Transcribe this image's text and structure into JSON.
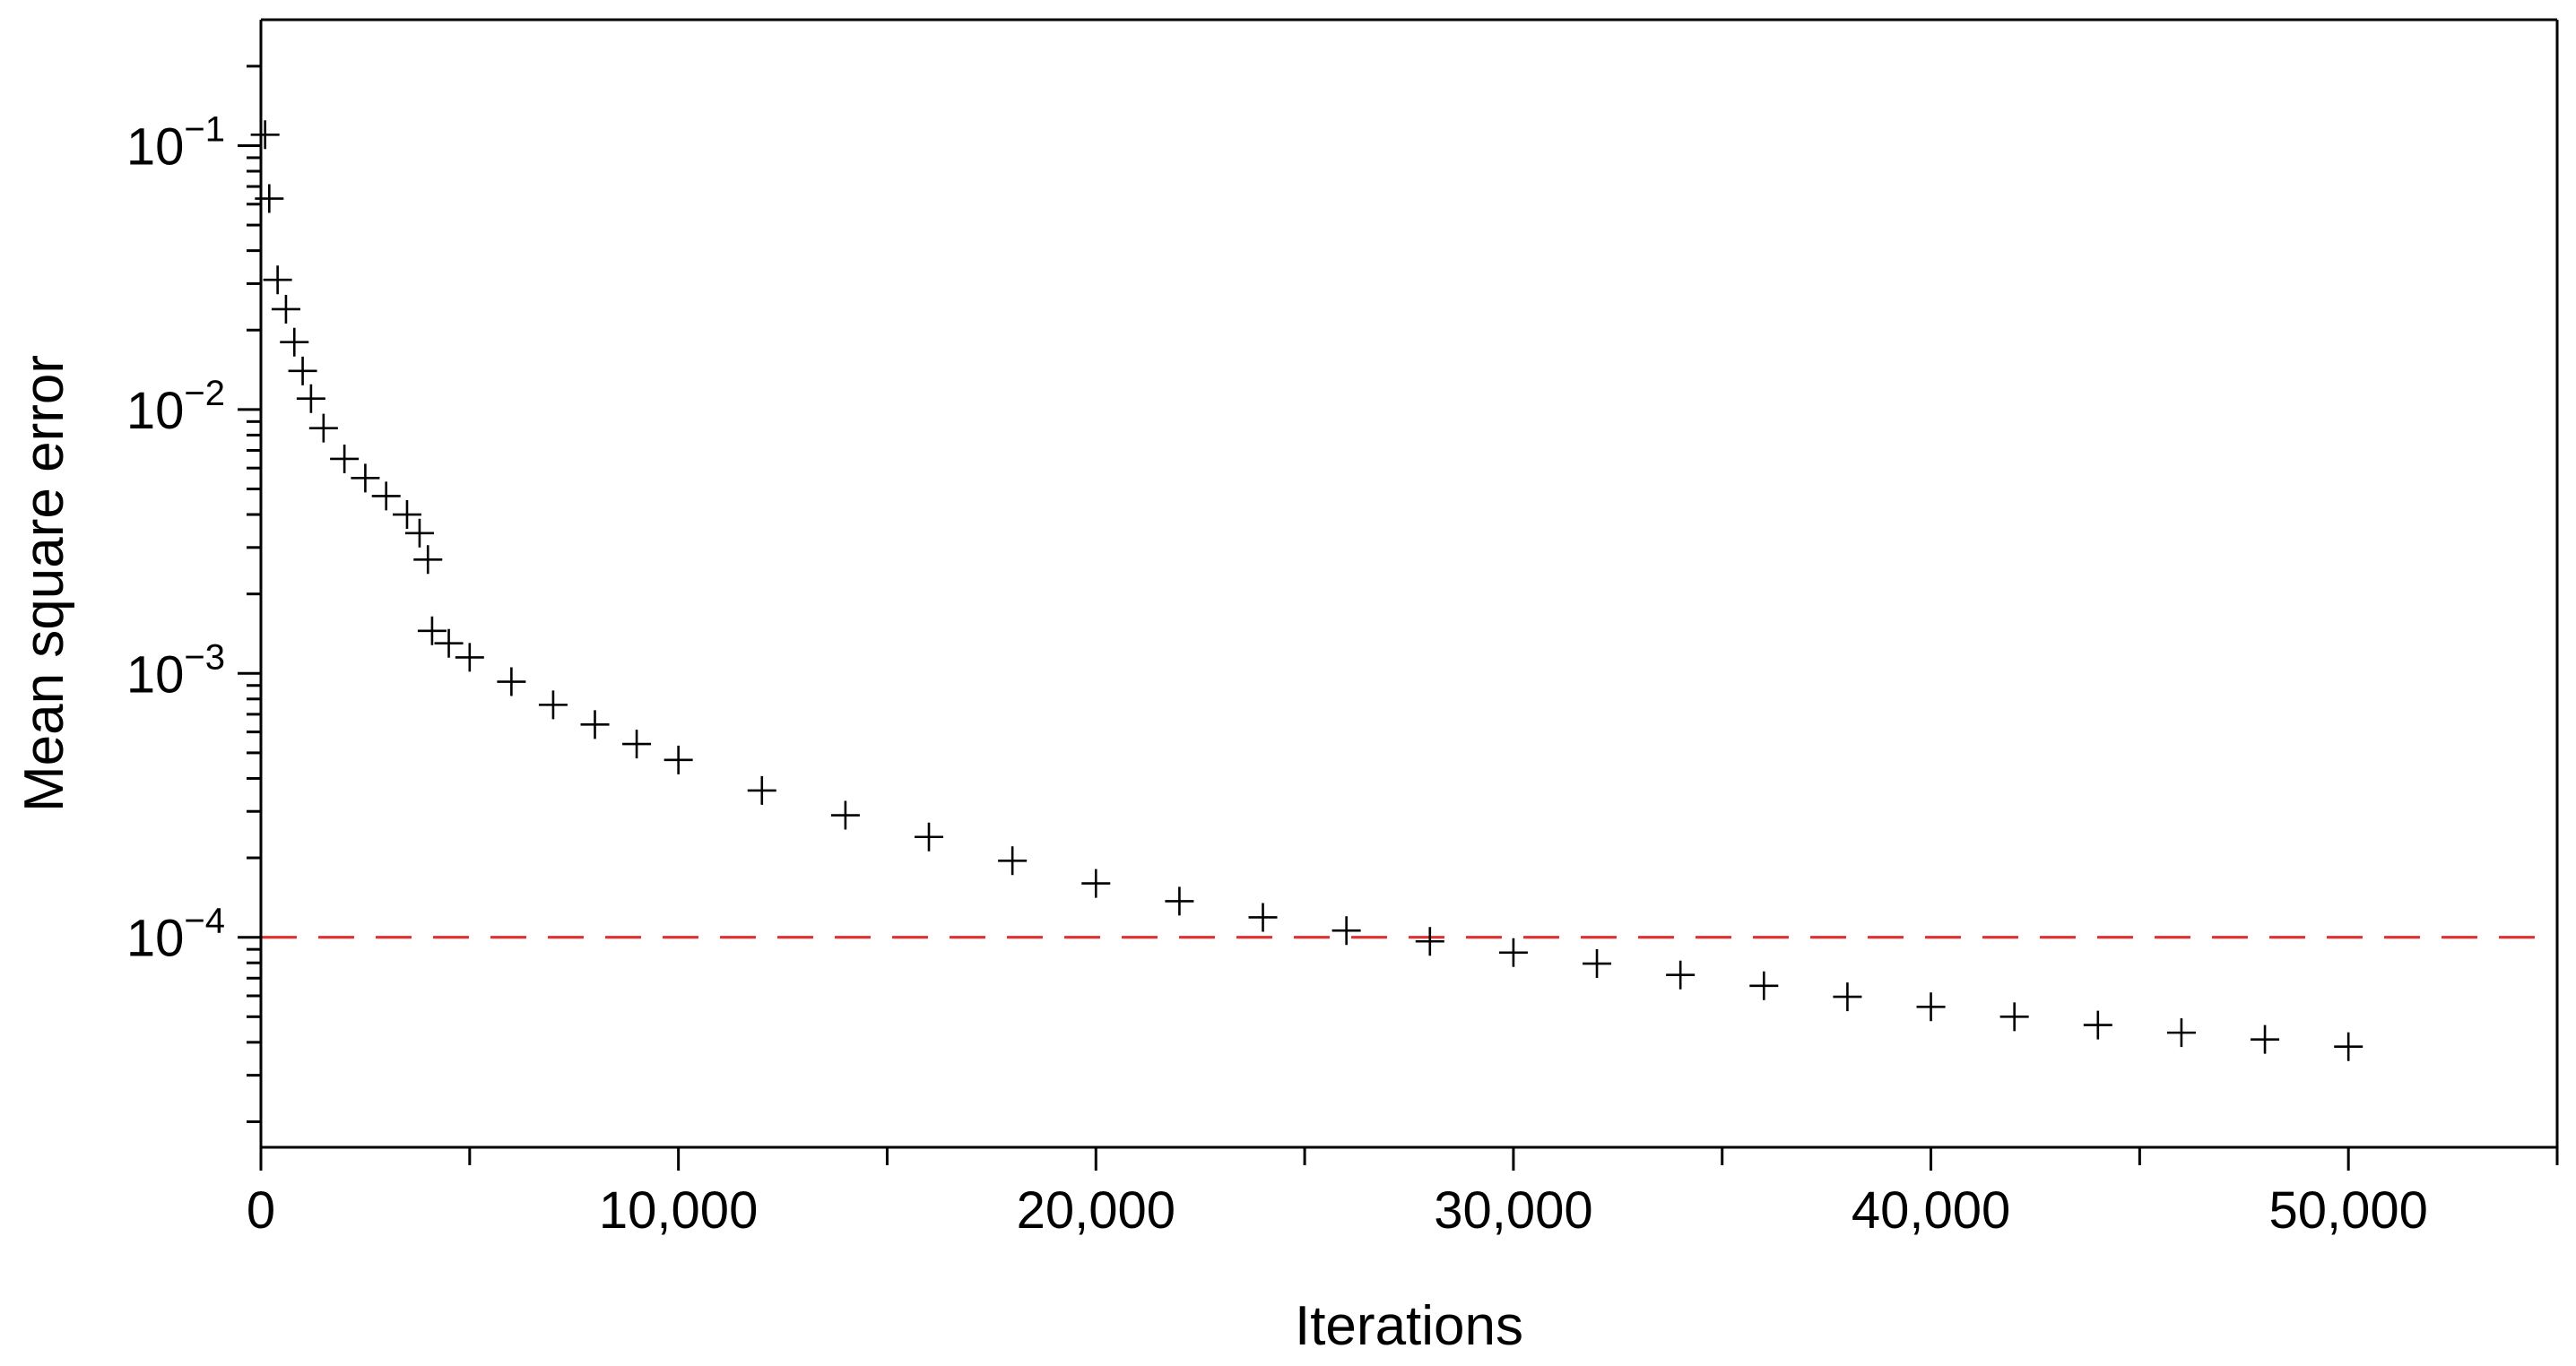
{
  "chart_data": {
    "type": "scatter",
    "title": "",
    "xlabel": "Iterations",
    "ylabel": "Mean square error",
    "x_scale": "linear",
    "y_scale": "log",
    "xlim": [
      0,
      55000
    ],
    "ylim": [
      1.6e-05,
      0.3
    ],
    "x_ticks": [
      0,
      10000,
      20000,
      30000,
      40000,
      50000
    ],
    "x_tick_labels": [
      "0",
      "10,000",
      "20,000",
      "30,000",
      "40,000",
      "50,000"
    ],
    "y_ticks": [
      0.1,
      0.01,
      0.001,
      0.0001
    ],
    "y_tick_labels": [
      {
        "base": "10",
        "exp": "−1"
      },
      {
        "base": "10",
        "exp": "−2"
      },
      {
        "base": "10",
        "exp": "−3"
      },
      {
        "base": "10",
        "exp": "−4"
      }
    ],
    "grid": false,
    "marker": "plus",
    "marker_color": "#000000",
    "reference_line": {
      "y": 0.0001,
      "color": "#e03030",
      "style": "dashed"
    },
    "series": [
      {
        "x": [
          100,
          200,
          400,
          600,
          800,
          1000,
          1200,
          1500,
          2000,
          2500,
          3000,
          3500,
          3800,
          4000,
          4100,
          4500,
          5000,
          6000,
          7000,
          8000,
          9000,
          10000,
          12000,
          14000,
          16000,
          18000,
          20000,
          22000,
          24000,
          26000,
          28000,
          30000,
          32000,
          34000,
          36000,
          38000,
          40000,
          42000,
          44000,
          46000,
          48000,
          50000
        ],
        "y": [
          0.11,
          0.063,
          0.031,
          0.024,
          0.018,
          0.014,
          0.011,
          0.0085,
          0.0065,
          0.0055,
          0.0047,
          0.004,
          0.0034,
          0.0027,
          0.00145,
          0.0013,
          0.00115,
          0.00093,
          0.00076,
          0.00064,
          0.00054,
          0.00047,
          0.00036,
          0.00029,
          0.00024,
          0.000195,
          0.00016,
          0.000137,
          0.000119,
          0.000106,
          9.65e-05,
          8.75e-05,
          7.95e-05,
          7.2e-05,
          6.55e-05,
          5.95e-05,
          5.45e-05,
          5e-05,
          4.65e-05,
          4.35e-05,
          4.1e-05,
          3.85e-05
        ]
      }
    ]
  }
}
